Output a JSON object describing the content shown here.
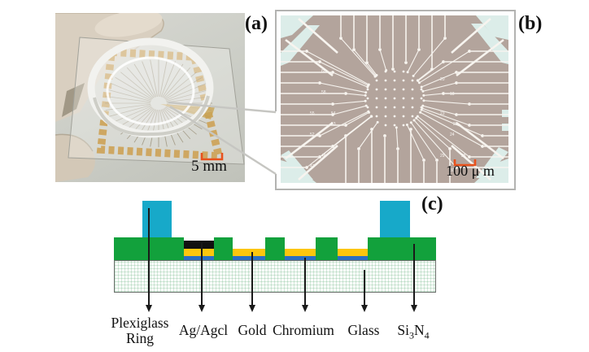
{
  "figure": {
    "panel_a": {
      "label": "(a)",
      "scale_text": "5 mm"
    },
    "panel_b": {
      "label": "(b)",
      "scale_text": "100 μ m",
      "electrode_labels": [
        "60",
        "58",
        "55",
        "54",
        "53",
        "52",
        "48",
        "47",
        "20",
        "18",
        "23",
        "26",
        "24",
        "29",
        "28",
        "30"
      ]
    },
    "panel_c": {
      "label": "(c)",
      "labels": {
        "plexiglass_line1": "Plexiglass",
        "plexiglass_line2": "Ring",
        "agagcl": "Ag/Agcl",
        "gold": "Gold",
        "chromium": "Chromium",
        "glass": "Glass",
        "si": "Si",
        "si_sub3": "3",
        "si_n": "N",
        "si_sub4": "4"
      }
    },
    "colors": {
      "scalebar_orange": "#e8521d",
      "plexiglass_cyan": "#17a9c9",
      "si3n4_green": "#12a13c",
      "gold_yellow": "#fcc60d",
      "chromium_blue": "#2a6fc2",
      "agagcl_black": "#111111",
      "mea_background": "#b3a49c",
      "mea_trace_white": "#f7f4ef",
      "mea_pad_cyan": "#dcede9",
      "photo_background": "#cdcfc8"
    }
  }
}
